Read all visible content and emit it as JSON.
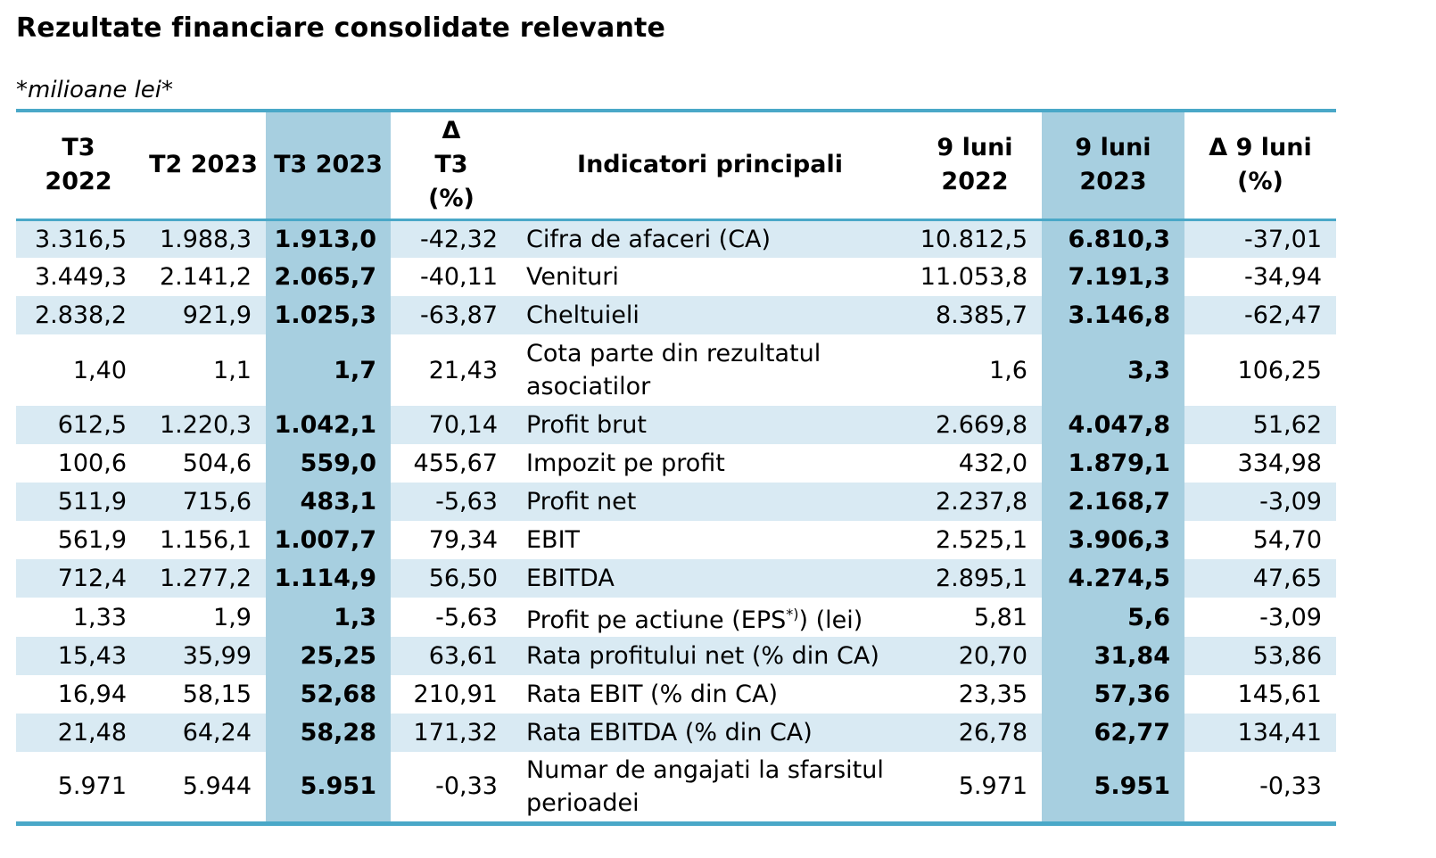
{
  "title": "Rezultate financiare consolidate relevante",
  "unit_note": "*milioane lei*",
  "headers": {
    "h1": "T3\n2022",
    "h2": "T2 2023",
    "h3": "T3 2023",
    "h4": "Δ\nT3\n(%)",
    "h5": "Indicatori principali",
    "h6": "9 luni\n2022",
    "h7": "9 luni\n2023",
    "h8": "Δ 9 luni\n(%)"
  },
  "rows": [
    {
      "t3_2022": "3.316,5",
      "t2_2023": "1.988,3",
      "t3_2023": "1.913,0",
      "delta_t3": "-42,32",
      "indicator": "Cifra de afaceri (CA)",
      "m9_2022": "10.812,5",
      "m9_2023": "6.810,3",
      "delta_9m": "-37,01"
    },
    {
      "t3_2022": "3.449,3",
      "t2_2023": "2.141,2",
      "t3_2023": "2.065,7",
      "delta_t3": "-40,11",
      "indicator": "Venituri",
      "m9_2022": "11.053,8",
      "m9_2023": "7.191,3",
      "delta_9m": "-34,94"
    },
    {
      "t3_2022": "2.838,2",
      "t2_2023": "921,9",
      "t3_2023": "1.025,3",
      "delta_t3": "-63,87",
      "indicator": "Cheltuieli",
      "m9_2022": "8.385,7",
      "m9_2023": "3.146,8",
      "delta_9m": "-62,47"
    },
    {
      "t3_2022": "1,40",
      "t2_2023": "1,1",
      "t3_2023": "1,7",
      "delta_t3": "21,43",
      "indicator": "Cota parte din rezultatul asociatilor",
      "m9_2022": "1,6",
      "m9_2023": "3,3",
      "delta_9m": "106,25"
    },
    {
      "t3_2022": "612,5",
      "t2_2023": "1.220,3",
      "t3_2023": "1.042,1",
      "delta_t3": "70,14",
      "indicator": "Profit brut",
      "m9_2022": "2.669,8",
      "m9_2023": "4.047,8",
      "delta_9m": "51,62"
    },
    {
      "t3_2022": "100,6",
      "t2_2023": "504,6",
      "t3_2023": "559,0",
      "delta_t3": "455,67",
      "indicator": "Impozit pe profit",
      "m9_2022": "432,0",
      "m9_2023": "1.879,1",
      "delta_9m": "334,98"
    },
    {
      "t3_2022": "511,9",
      "t2_2023": "715,6",
      "t3_2023": "483,1",
      "delta_t3": "-5,63",
      "indicator": "Profit net",
      "m9_2022": "2.237,8",
      "m9_2023": "2.168,7",
      "delta_9m": "-3,09"
    },
    {
      "t3_2022": "561,9",
      "t2_2023": "1.156,1",
      "t3_2023": "1.007,7",
      "delta_t3": "79,34",
      "indicator": "EBIT",
      "m9_2022": "2.525,1",
      "m9_2023": "3.906,3",
      "delta_9m": "54,70"
    },
    {
      "t3_2022": "712,4",
      "t2_2023": "1.277,2",
      "t3_2023": "1.114,9",
      "delta_t3": "56,50",
      "indicator": "EBITDA",
      "m9_2022": "2.895,1",
      "m9_2023": "4.274,5",
      "delta_9m": "47,65"
    },
    {
      "t3_2022": "1,33",
      "t2_2023": "1,9",
      "t3_2023": "1,3",
      "delta_t3": "-5,63",
      "indicator": "Profit pe actiune (EPS",
      "indicator_sup": "*)",
      "indicator_tail": ") (lei)",
      "m9_2022": "5,81",
      "m9_2023": "5,6",
      "delta_9m": "-3,09"
    },
    {
      "t3_2022": "15,43",
      "t2_2023": "35,99",
      "t3_2023": "25,25",
      "delta_t3": "63,61",
      "indicator": "Rata profitului net (% din CA)",
      "m9_2022": "20,70",
      "m9_2023": "31,84",
      "delta_9m": "53,86"
    },
    {
      "t3_2022": "16,94",
      "t2_2023": "58,15",
      "t3_2023": "52,68",
      "delta_t3": "210,91",
      "indicator": "Rata EBIT (% din CA)",
      "m9_2022": "23,35",
      "m9_2023": "57,36",
      "delta_9m": "145,61"
    },
    {
      "t3_2022": "21,48",
      "t2_2023": "64,24",
      "t3_2023": "58,28",
      "delta_t3": "171,32",
      "indicator": "Rata EBITDA (% din CA)",
      "m9_2022": "26,78",
      "m9_2023": "62,77",
      "delta_9m": "134,41"
    },
    {
      "t3_2022": "5.971",
      "t2_2023": "5.944",
      "t3_2023": "5.951",
      "delta_t3": "-0,33",
      "indicator": "Numar de angajati la sfarsitul perioadei",
      "m9_2022": "5.971",
      "m9_2023": "5.951",
      "delta_9m": "-0,33"
    }
  ]
}
